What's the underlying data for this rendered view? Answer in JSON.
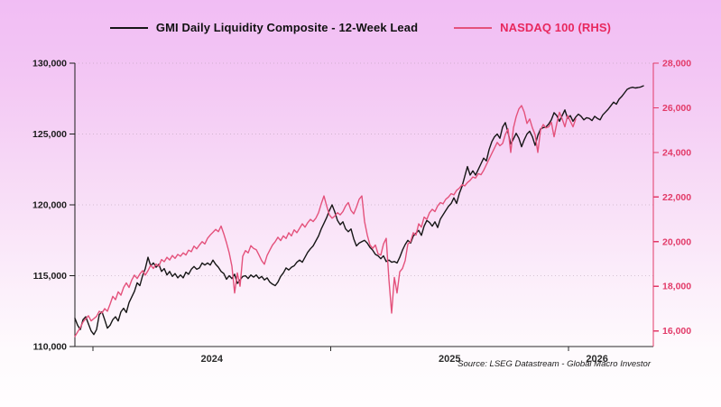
{
  "legend": [
    {
      "label": "GMI Daily Liquidity Composite - 12-Week Lead",
      "line_color": "#161616",
      "text_color": "#111111"
    },
    {
      "label": "NASDAQ 100 (RHS)",
      "line_color": "#e4527c",
      "text_color": "#e8285e"
    }
  ],
  "source_note": "Source: LSEG Datastream - Global Macro Investor",
  "chart_data": {
    "type": "line",
    "grid": "dotted-horizontal",
    "legend_position": "top-center",
    "x_axis": {
      "unit": "year",
      "range": [
        2023.924,
        2026.434
      ],
      "tick_values": [
        2024,
        2025,
        2026
      ],
      "tick_labels": [
        "2024",
        "2025",
        "2026"
      ],
      "label_positions": [
        2024.5,
        2025.5,
        2026.12
      ],
      "color": "#2a2a2a"
    },
    "left_axis": {
      "range": [
        110000,
        130000
      ],
      "tick_values": [
        110000,
        115000,
        120000,
        125000,
        130000
      ],
      "tick_labels": [
        "110,000",
        "115,000",
        "120,000",
        "125,000",
        "130,000"
      ],
      "color": "#1c1c1c"
    },
    "right_axis": {
      "range": [
        15300,
        28000
      ],
      "tick_values": [
        16000,
        18000,
        20000,
        22000,
        24000,
        26000,
        28000
      ],
      "tick_labels": [
        "16,000",
        "18,000",
        "20,000",
        "22,000",
        "24,000",
        "26,000",
        "28,000"
      ],
      "color": "#e23a68"
    },
    "series": [
      {
        "id": "gmi-line",
        "name": "GMI Daily Liquidity Composite - 12-Week Lead",
        "axis": "left",
        "color": "#161616",
        "x0": 2023.9241,
        "dx": 0.0113852,
        "values": [
          112000,
          111500,
          111200,
          111900,
          112100,
          111600,
          111100,
          110850,
          111200,
          112250,
          112450,
          111900,
          111300,
          111500,
          111900,
          112100,
          111800,
          112450,
          112700,
          112400,
          113100,
          113500,
          113900,
          114500,
          114300,
          115000,
          115500,
          116300,
          115700,
          115900,
          115600,
          115800,
          115300,
          115500,
          115050,
          115300,
          114950,
          115150,
          114850,
          115050,
          114850,
          115250,
          115100,
          115450,
          115650,
          115450,
          115550,
          115900,
          115750,
          115900,
          115750,
          116100,
          115800,
          115600,
          115300,
          115150,
          114750,
          115000,
          114800,
          115100,
          114450,
          114700,
          114950,
          115000,
          114800,
          115050,
          114900,
          115050,
          114800,
          114950,
          114700,
          114850,
          114550,
          114400,
          114300,
          114550,
          114950,
          115200,
          115550,
          115400,
          115600,
          115700,
          115950,
          116100,
          115950,
          116300,
          116650,
          116900,
          117100,
          117450,
          117800,
          118300,
          118700,
          119100,
          119600,
          120000,
          119500,
          118900,
          118600,
          118800,
          118300,
          118100,
          118300,
          117600,
          117100,
          117300,
          117400,
          117500,
          117300,
          117000,
          116800,
          116500,
          116400,
          116200,
          116400,
          116000,
          116100,
          115950,
          116000,
          115900,
          116300,
          116800,
          117200,
          117500,
          117300,
          117800,
          118000,
          118200,
          117850,
          118500,
          118900,
          118750,
          118500,
          118800,
          118400,
          119000,
          119300,
          119600,
          119900,
          120100,
          120500,
          120100,
          120800,
          121300,
          122000,
          122700,
          122100,
          122400,
          122100,
          122500,
          122900,
          123300,
          123100,
          123900,
          124450,
          124800,
          125000,
          124700,
          125500,
          125800,
          125100,
          124300,
          124650,
          125050,
          124700,
          124100,
          124600,
          125000,
          125200,
          124800,
          124200,
          124900,
          125350,
          125450,
          125500,
          125700,
          126000,
          126500,
          126300,
          125900,
          126300,
          126700,
          126100,
          126300,
          125900,
          126200,
          126400,
          126250,
          126000,
          126150,
          126100,
          125950,
          126250,
          126100,
          126000,
          126350,
          126550,
          126750,
          127000,
          127250,
          127100,
          127450,
          127650,
          127900,
          128150,
          128250,
          128300,
          128250,
          128280,
          128320,
          128400
        ]
      },
      {
        "id": "nasdaq-line",
        "name": "NASDAQ 100 (RHS)",
        "axis": "right",
        "color": "#e4527c",
        "x0": 2023.9241,
        "dx": 0.0113852,
        "values": [
          15750,
          15950,
          16150,
          16400,
          16550,
          16680,
          16450,
          16550,
          16650,
          16880,
          16800,
          17000,
          16880,
          17200,
          17550,
          17400,
          17750,
          17600,
          17950,
          18150,
          17950,
          18280,
          18500,
          18350,
          18550,
          18700,
          18500,
          18700,
          18950,
          18800,
          19000,
          18900,
          19200,
          19100,
          19300,
          19180,
          19380,
          19250,
          19430,
          19350,
          19500,
          19400,
          19620,
          19550,
          19800,
          19680,
          19850,
          20000,
          19900,
          20150,
          20300,
          20420,
          20550,
          20450,
          20700,
          20350,
          19950,
          19500,
          18900,
          17700,
          18600,
          18000,
          19350,
          19600,
          19500,
          19820,
          19700,
          19640,
          19400,
          19150,
          18990,
          19380,
          19620,
          19850,
          20000,
          20200,
          20050,
          20260,
          20140,
          20400,
          20260,
          20530,
          20400,
          20600,
          20800,
          20650,
          20850,
          21000,
          20900,
          21050,
          21300,
          21700,
          22050,
          21600,
          21200,
          21050,
          21150,
          21300,
          21200,
          21350,
          21600,
          21750,
          21400,
          21250,
          21550,
          21900,
          22050,
          20900,
          20300,
          19850,
          19700,
          19850,
          19450,
          19400,
          19900,
          20150,
          18300,
          16800,
          18400,
          17700,
          18650,
          18800,
          19150,
          19900,
          20000,
          20400,
          20300,
          20800,
          20650,
          21100,
          21000,
          21300,
          21450,
          21350,
          21600,
          21750,
          21700,
          21900,
          22000,
          22150,
          22100,
          22300,
          22400,
          22550,
          22500,
          22650,
          22750,
          22900,
          22850,
          23050,
          23000,
          23200,
          23450,
          23700,
          23950,
          24200,
          24450,
          24300,
          24400,
          24800,
          25050,
          24000,
          25100,
          25600,
          25950,
          26100,
          25800,
          25300,
          25500,
          25100,
          24800,
          24000,
          25000,
          25250,
          25100,
          25150,
          25350,
          24700,
          25300,
          25800,
          25500,
          25150,
          25650,
          25400,
          25150,
          25500
        ]
      }
    ]
  }
}
